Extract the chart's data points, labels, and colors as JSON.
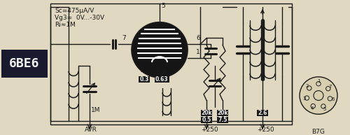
{
  "bg_color": "#e0d8c0",
  "left_label_bg": "#1a1a2e",
  "left_label_text": "6BE6",
  "title_text1": "Sc=475μA/V",
  "title_text2": "Vg3=  0V...-30V",
  "title_text3": "Ri≈1M",
  "circuit_color": "#1a1a1a",
  "box_bg": "#1a1a1a",
  "box_text_color": "#f0f0f0",
  "tube_fill": "#151515",
  "bg_beige": "#e0d8c0"
}
